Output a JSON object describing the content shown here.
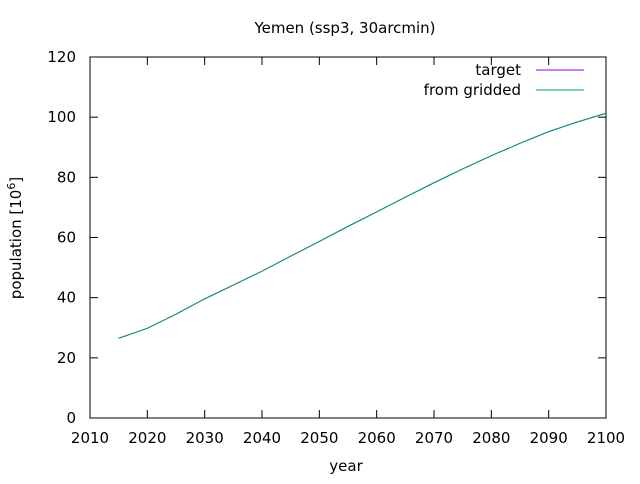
{
  "chart_data": {
    "type": "line",
    "title": "Yemen (ssp3, 30arcmin)",
    "xlabel": "year",
    "ylabel": "population [10",
    "ylabel_sup": "6",
    "ylabel_close": "]",
    "xlim": [
      2010,
      2100
    ],
    "ylim": [
      0,
      120
    ],
    "x_ticks": [
      2010,
      2020,
      2030,
      2040,
      2050,
      2060,
      2070,
      2080,
      2090,
      2100
    ],
    "y_ticks": [
      0,
      20,
      40,
      60,
      80,
      100,
      120
    ],
    "grid": false,
    "legend_position": "top-right",
    "series": [
      {
        "name": "target",
        "color": "#9400d3",
        "x": [
          2015,
          2020,
          2025,
          2030,
          2035,
          2040,
          2045,
          2050,
          2055,
          2060,
          2065,
          2070,
          2075,
          2080,
          2085,
          2090,
          2095,
          2100
        ],
        "values": [
          26.5,
          29.8,
          34.5,
          39.6,
          44.2,
          48.8,
          53.8,
          58.7,
          63.7,
          68.5,
          73.4,
          78.2,
          82.8,
          87.2,
          91.3,
          95.2,
          98.4,
          101.3
        ]
      },
      {
        "name": "from gridded",
        "color": "#009e73",
        "x": [
          2015,
          2020,
          2025,
          2030,
          2035,
          2040,
          2045,
          2050,
          2055,
          2060,
          2065,
          2070,
          2075,
          2080,
          2085,
          2090,
          2095,
          2100
        ],
        "values": [
          26.5,
          29.8,
          34.5,
          39.6,
          44.2,
          48.8,
          53.8,
          58.7,
          63.7,
          68.5,
          73.4,
          78.2,
          82.8,
          87.2,
          91.3,
          95.2,
          98.4,
          101.3
        ]
      }
    ]
  }
}
